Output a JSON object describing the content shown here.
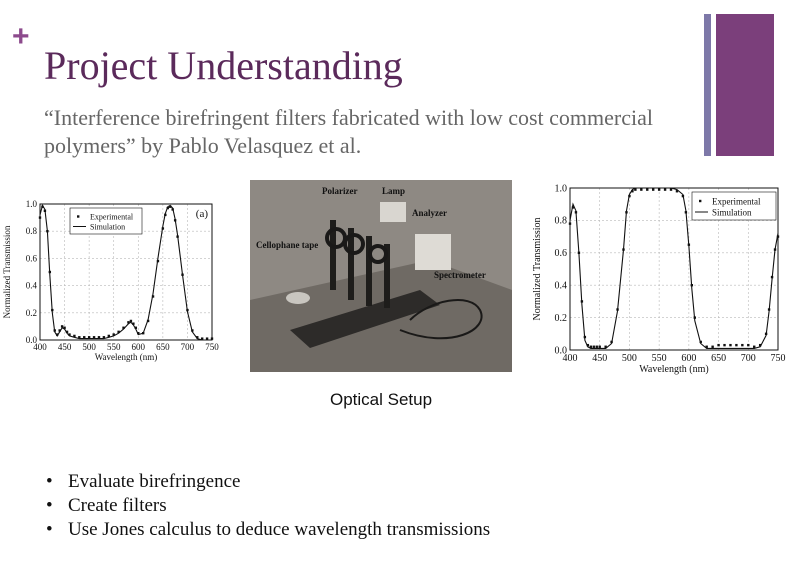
{
  "slide": {
    "plus": "+",
    "title": "Project Understanding",
    "subtitle": "“Interference birefringent filters fabricated with low cost commercial polymers” by Pablo Velasquez et al.",
    "caption": "Optical Setup",
    "bullets": [
      "Evaluate birefringence",
      "Create filters",
      "Use Jones calculus to deduce wavelength transmissions"
    ],
    "bullet_glyph": "•"
  },
  "colors": {
    "plus": "#8c4a8c",
    "title": "#5b2a5b",
    "subtitle": "#666666",
    "bar_thin": "#7d78a8",
    "bar_thick": "#7b3f7b"
  },
  "photo_labels": {
    "polarizer": "Polarizer",
    "lamp": "Lamp",
    "analyzer": "Analyzer",
    "cellophane": "Cellophane tape",
    "spectrometer": "Spectrometer"
  },
  "chart_data": [
    {
      "type": "line",
      "panel_label": "(a)",
      "xlabel": "Wavelength (nm)",
      "ylabel": "Normalized Transmission",
      "xlim": [
        400,
        750
      ],
      "ylim": [
        0.0,
        1.0
      ],
      "x_ticks": [
        400,
        450,
        500,
        550,
        600,
        650,
        700,
        750
      ],
      "y_ticks": [
        "0.0",
        "0.2",
        "0.4",
        "0.6",
        "0.8",
        "1.0"
      ],
      "grid": true,
      "legend": "top-left",
      "series": [
        {
          "name": "Experimental",
          "style": "points",
          "x": [
            400,
            405,
            410,
            415,
            420,
            425,
            430,
            435,
            440,
            445,
            450,
            455,
            460,
            470,
            480,
            490,
            500,
            510,
            520,
            530,
            540,
            550,
            560,
            570,
            580,
            585,
            590,
            595,
            600,
            610,
            620,
            630,
            640,
            650,
            655,
            660,
            665,
            670,
            675,
            680,
            690,
            700,
            710,
            720,
            730,
            740,
            750
          ],
          "y": [
            0.9,
            0.98,
            0.95,
            0.8,
            0.5,
            0.22,
            0.07,
            0.04,
            0.07,
            0.1,
            0.09,
            0.06,
            0.04,
            0.03,
            0.02,
            0.02,
            0.02,
            0.02,
            0.02,
            0.02,
            0.03,
            0.04,
            0.06,
            0.09,
            0.13,
            0.14,
            0.12,
            0.09,
            0.05,
            0.05,
            0.14,
            0.32,
            0.58,
            0.82,
            0.92,
            0.97,
            0.98,
            0.96,
            0.88,
            0.76,
            0.48,
            0.22,
            0.07,
            0.02,
            0.01,
            0.01,
            0.01
          ]
        },
        {
          "name": "Simulation",
          "style": "line",
          "x": [
            400,
            405,
            410,
            415,
            420,
            425,
            430,
            435,
            440,
            445,
            450,
            455,
            460,
            470,
            480,
            490,
            500,
            510,
            520,
            530,
            540,
            550,
            560,
            570,
            580,
            585,
            590,
            595,
            600,
            610,
            620,
            630,
            640,
            650,
            655,
            660,
            665,
            670,
            675,
            680,
            690,
            700,
            710,
            720,
            730,
            740,
            750
          ],
          "y": [
            0.92,
            0.99,
            0.96,
            0.8,
            0.48,
            0.2,
            0.06,
            0.03,
            0.06,
            0.09,
            0.08,
            0.05,
            0.03,
            0.02,
            0.01,
            0.01,
            0.01,
            0.01,
            0.01,
            0.01,
            0.02,
            0.03,
            0.05,
            0.08,
            0.12,
            0.13,
            0.11,
            0.08,
            0.04,
            0.05,
            0.15,
            0.34,
            0.6,
            0.84,
            0.93,
            0.98,
            0.99,
            0.97,
            0.89,
            0.77,
            0.48,
            0.21,
            0.06,
            0.01,
            0.0,
            0.0,
            0.0
          ]
        }
      ]
    },
    {
      "type": "line",
      "xlabel": "Wavelength (nm)",
      "ylabel": "Normalized Transmission",
      "xlim": [
        400,
        750
      ],
      "ylim": [
        0.0,
        1.0
      ],
      "x_ticks": [
        400,
        450,
        500,
        550,
        600,
        650,
        700,
        750
      ],
      "y_ticks": [
        "0.0",
        "0.2",
        "0.4",
        "0.6",
        "0.8",
        "1.0"
      ],
      "grid": true,
      "legend": "top-right",
      "series": [
        {
          "name": "Experimental",
          "style": "points",
          "x": [
            400,
            405,
            410,
            415,
            420,
            425,
            430,
            435,
            440,
            445,
            450,
            460,
            470,
            480,
            490,
            495,
            500,
            505,
            510,
            520,
            530,
            540,
            550,
            560,
            570,
            580,
            590,
            595,
            600,
            605,
            610,
            620,
            630,
            640,
            650,
            660,
            670,
            680,
            690,
            700,
            710,
            720,
            730,
            735,
            740,
            745,
            750
          ],
          "y": [
            0.78,
            0.88,
            0.85,
            0.6,
            0.3,
            0.08,
            0.03,
            0.02,
            0.02,
            0.02,
            0.02,
            0.02,
            0.05,
            0.25,
            0.62,
            0.85,
            0.95,
            0.98,
            0.99,
            0.99,
            0.99,
            0.99,
            0.99,
            0.99,
            0.99,
            0.98,
            0.95,
            0.85,
            0.65,
            0.4,
            0.2,
            0.05,
            0.02,
            0.02,
            0.03,
            0.03,
            0.03,
            0.03,
            0.03,
            0.03,
            0.02,
            0.03,
            0.1,
            0.25,
            0.45,
            0.62,
            0.7
          ]
        },
        {
          "name": "Simulation",
          "style": "line",
          "x": [
            400,
            405,
            410,
            415,
            420,
            425,
            430,
            435,
            440,
            445,
            450,
            460,
            470,
            480,
            490,
            495,
            500,
            505,
            510,
            520,
            530,
            540,
            550,
            560,
            570,
            580,
            590,
            595,
            600,
            605,
            610,
            620,
            630,
            640,
            650,
            660,
            670,
            680,
            690,
            700,
            710,
            720,
            730,
            735,
            740,
            745,
            750
          ],
          "y": [
            0.8,
            0.9,
            0.86,
            0.6,
            0.28,
            0.06,
            0.02,
            0.01,
            0.01,
            0.01,
            0.01,
            0.01,
            0.04,
            0.24,
            0.62,
            0.86,
            0.96,
            0.99,
            1.0,
            1.0,
            1.0,
            1.0,
            1.0,
            1.0,
            1.0,
            0.99,
            0.96,
            0.86,
            0.64,
            0.38,
            0.18,
            0.04,
            0.01,
            0.01,
            0.01,
            0.01,
            0.01,
            0.01,
            0.01,
            0.01,
            0.01,
            0.02,
            0.09,
            0.24,
            0.44,
            0.62,
            0.72
          ]
        }
      ]
    }
  ]
}
